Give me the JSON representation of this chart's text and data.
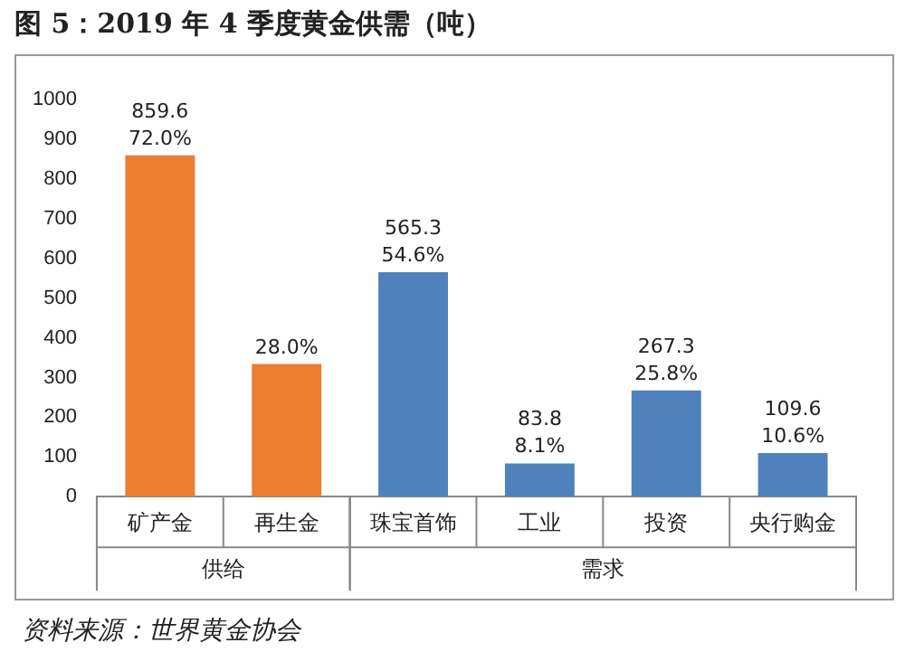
{
  "chart_data": {
    "type": "bar",
    "title": "图 5：2019 年 4 季度黄金供需（吨）",
    "categories": [
      "矿产金",
      "再生金",
      "珠宝首饰",
      "工业",
      "投资",
      "央行购金"
    ],
    "values": [
      859.6,
      334,
      565.3,
      83.8,
      267.3,
      109.6
    ],
    "colors": [
      "#ed7d31",
      "#ed7d31",
      "#4f81bd",
      "#4f81bd",
      "#4f81bd",
      "#4f81bd"
    ],
    "value_labels": [
      "859.6\n72.0%",
      null,
      "565.3\n54.6%",
      "83.8\n8.1%",
      "267.3\n25.8%",
      "109.6\n10.6%"
    ],
    "ylim": [
      0,
      1000
    ],
    "yticks": [
      0,
      100,
      200,
      300,
      400,
      500,
      600,
      700,
      800,
      900,
      1000
    ],
    "grid": false,
    "legend": false,
    "annotations": [
      "供给",
      "需求",
      "资料来源：世界黄金协会",
      {
        "text": "28.0%",
        "x": "再生金",
        "y": 334
      }
    ]
  }
}
